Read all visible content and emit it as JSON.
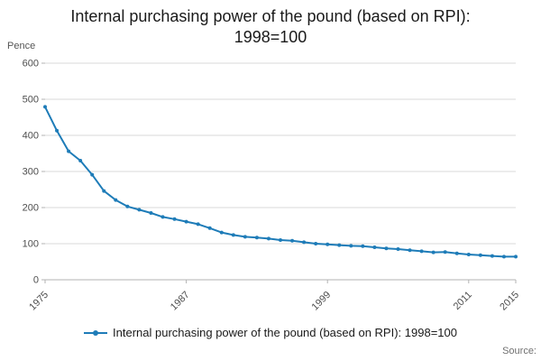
{
  "title": {
    "line1": "Internal purchasing power of the pound (based on RPI):",
    "line2": "1998=100"
  },
  "y_axis_unit": "Pence",
  "legend": {
    "label": "Internal purchasing power of the pound (based on RPI): 1998=100"
  },
  "source": "Source:",
  "colors": {
    "line": "#1e7cb8",
    "grid": "#d9d9d9",
    "axis": "#b3b3b3",
    "text": "#4d4d4d"
  },
  "chart_data": {
    "type": "line",
    "title": "Internal purchasing power of the pound (based on RPI): 1998=100",
    "xlabel": "",
    "ylabel": "Pence",
    "ylim": [
      0,
      600
    ],
    "yticks": [
      0,
      100,
      200,
      300,
      400,
      500,
      600
    ],
    "grid": "horizontal",
    "legend_position": "bottom",
    "xtick_labels": [
      "1975",
      "1987",
      "1999",
      "2011",
      "2015"
    ],
    "x": [
      1975,
      1976,
      1977,
      1978,
      1979,
      1980,
      1981,
      1982,
      1983,
      1984,
      1985,
      1986,
      1987,
      1988,
      1989,
      1990,
      1991,
      1992,
      1993,
      1994,
      1995,
      1996,
      1997,
      1998,
      1999,
      2000,
      2001,
      2002,
      2003,
      2004,
      2005,
      2006,
      2007,
      2008,
      2009,
      2010,
      2011,
      2012,
      2013,
      2014,
      2015
    ],
    "series": [
      {
        "name": "Internal purchasing power of the pound (based on RPI): 1998=100",
        "values": [
          479,
          413,
          356,
          330,
          291,
          246,
          221,
          203,
          194,
          185,
          174,
          168,
          161,
          154,
          143,
          131,
          124,
          119,
          117,
          114,
          110,
          108,
          104,
          100,
          98,
          96,
          94,
          93,
          90,
          87,
          85,
          82,
          79,
          76,
          77,
          73,
          70,
          68,
          66,
          64,
          64
        ]
      }
    ]
  }
}
